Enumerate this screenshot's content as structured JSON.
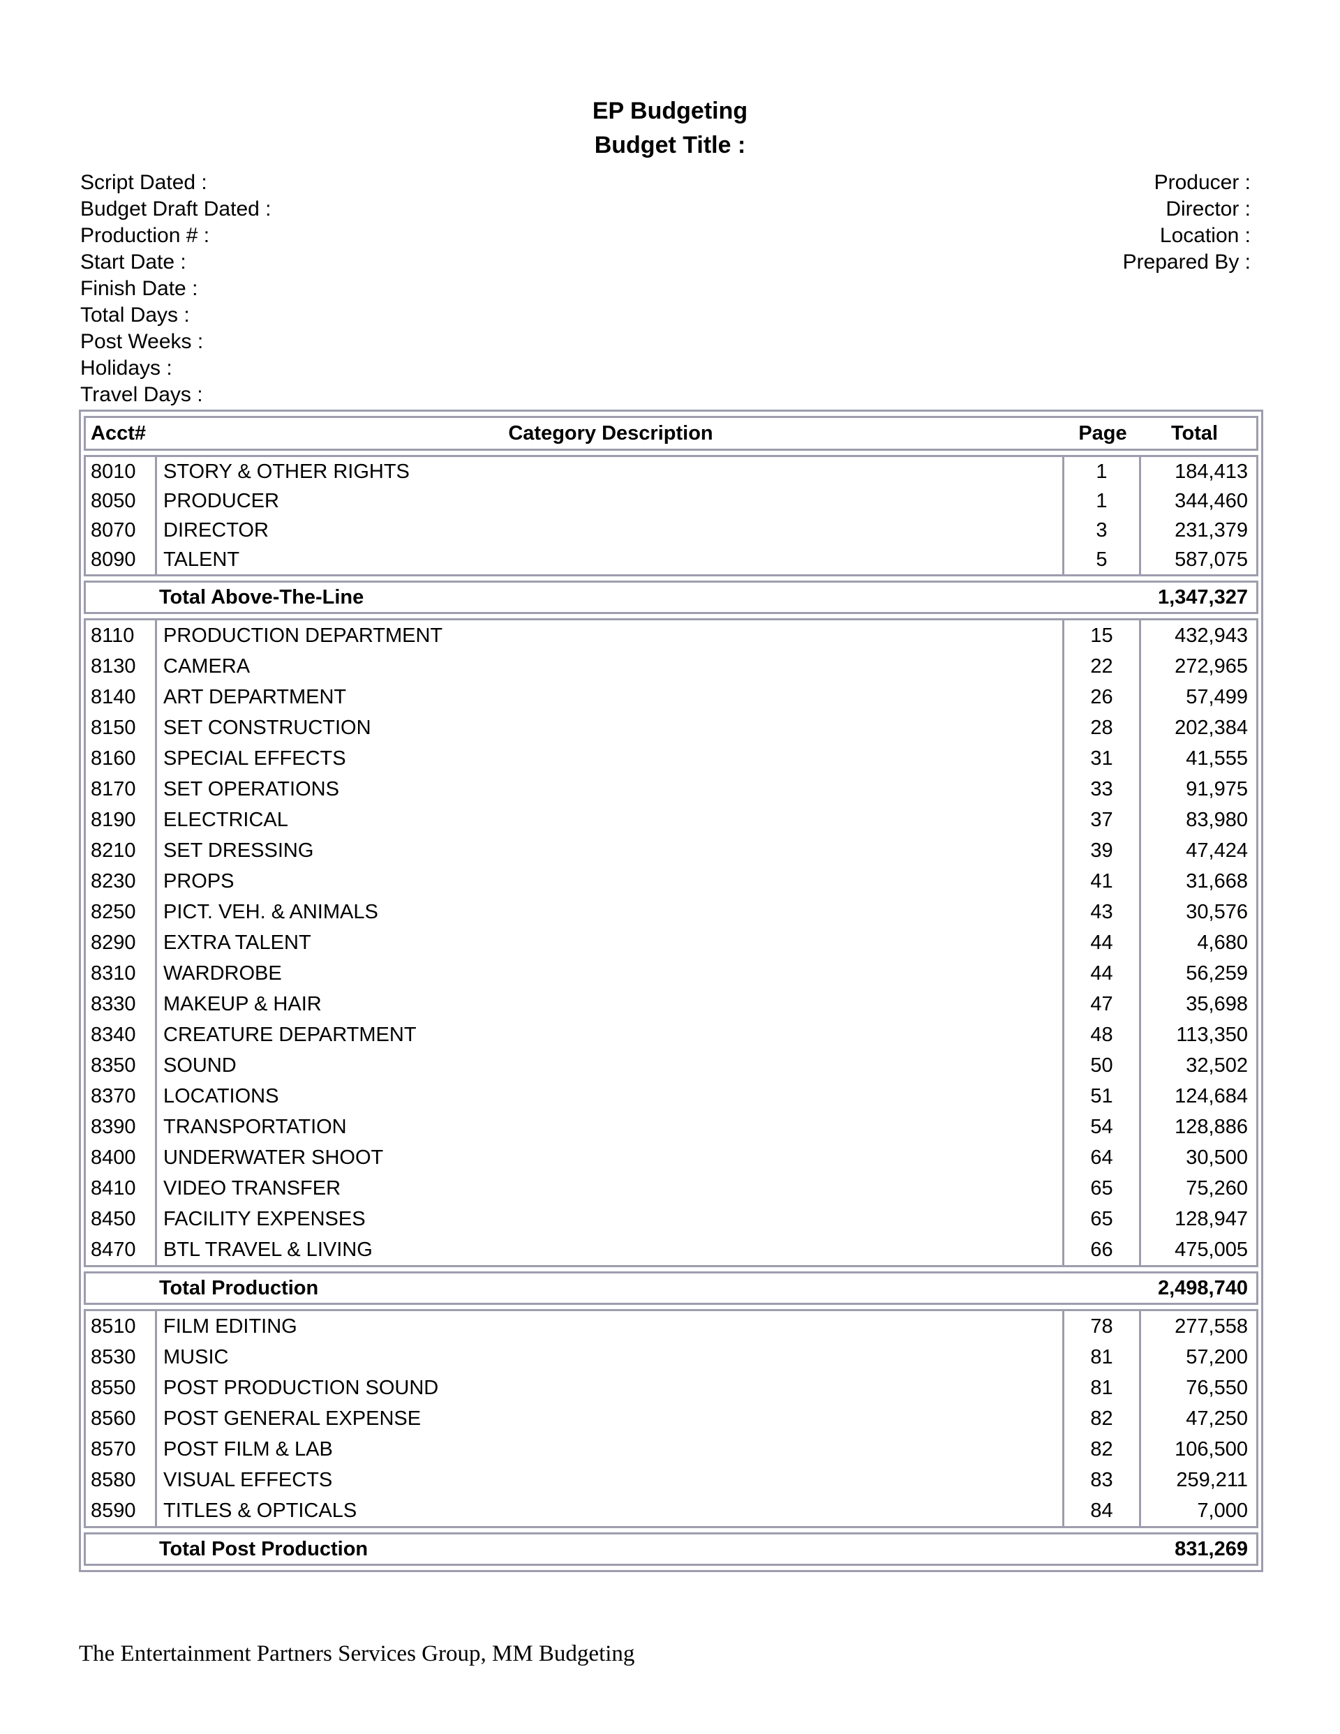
{
  "title": "EP Budgeting",
  "subtitle": "Budget Title :",
  "meta_left": [
    "Script Dated :",
    "Budget Draft Dated :",
    "Production # :",
    "Start Date :",
    "Finish Date :",
    "Total Days :",
    "Post Weeks :",
    "Holidays :",
    "Travel Days :"
  ],
  "meta_right": [
    "Producer :",
    "Director :",
    "Location :",
    "Prepared By :"
  ],
  "table": {
    "columns": [
      "Acct#",
      "Category Description",
      "Page",
      "Total"
    ],
    "sections": [
      {
        "name": "Above-The-Line",
        "rows": [
          [
            "8010",
            "STORY & OTHER RIGHTS",
            "1",
            "184,413"
          ],
          [
            "8050",
            "PRODUCER",
            "1",
            "344,460"
          ],
          [
            "8070",
            "DIRECTOR",
            "3",
            "231,379"
          ],
          [
            "8090",
            "TALENT",
            "5",
            "587,075"
          ]
        ],
        "total_label": "Total Above-The-Line",
        "total_value": "1,347,327"
      },
      {
        "name": "Production",
        "rows": [
          [
            "8110",
            "PRODUCTION DEPARTMENT",
            "15",
            "432,943"
          ],
          [
            "8130",
            "CAMERA",
            "22",
            "272,965"
          ],
          [
            "8140",
            "ART DEPARTMENT",
            "26",
            "57,499"
          ],
          [
            "8150",
            "SET CONSTRUCTION",
            "28",
            "202,384"
          ],
          [
            "8160",
            "SPECIAL EFFECTS",
            "31",
            "41,555"
          ],
          [
            "8170",
            "SET OPERATIONS",
            "33",
            "91,975"
          ],
          [
            "8190",
            "ELECTRICAL",
            "37",
            "83,980"
          ],
          [
            "8210",
            "SET DRESSING",
            "39",
            "47,424"
          ],
          [
            "8230",
            "PROPS",
            "41",
            "31,668"
          ],
          [
            "8250",
            "PICT. VEH. & ANIMALS",
            "43",
            "30,576"
          ],
          [
            "8290",
            "EXTRA TALENT",
            "44",
            "4,680"
          ],
          [
            "8310",
            "WARDROBE",
            "44",
            "56,259"
          ],
          [
            "8330",
            "MAKEUP & HAIR",
            "47",
            "35,698"
          ],
          [
            "8340",
            "CREATURE DEPARTMENT",
            "48",
            "113,350"
          ],
          [
            "8350",
            "SOUND",
            "50",
            "32,502"
          ],
          [
            "8370",
            "LOCATIONS",
            "51",
            "124,684"
          ],
          [
            "8390",
            "TRANSPORTATION",
            "54",
            "128,886"
          ],
          [
            "8400",
            "UNDERWATER SHOOT",
            "64",
            "30,500"
          ],
          [
            "8410",
            "VIDEO TRANSFER",
            "65",
            "75,260"
          ],
          [
            "8450",
            "FACILITY EXPENSES",
            "65",
            "128,947"
          ],
          [
            "8470",
            "BTL TRAVEL & LIVING",
            "66",
            "475,005"
          ]
        ],
        "total_label": "Total Production",
        "total_value": "2,498,740"
      },
      {
        "name": "Post Production",
        "rows": [
          [
            "8510",
            "FILM EDITING",
            "78",
            "277,558"
          ],
          [
            "8530",
            "MUSIC",
            "81",
            "57,200"
          ],
          [
            "8550",
            "POST PRODUCTION SOUND",
            "81",
            "76,550"
          ],
          [
            "8560",
            "POST GENERAL EXPENSE",
            "82",
            "47,250"
          ],
          [
            "8570",
            "POST FILM & LAB",
            "82",
            "106,500"
          ],
          [
            "8580",
            "VISUAL EFFECTS",
            "83",
            "259,211"
          ],
          [
            "8590",
            "TITLES & OPTICALS",
            "84",
            "7,000"
          ]
        ],
        "total_label": "Total Post Production",
        "total_value": "831,269"
      }
    ]
  },
  "footer": "The Entertainment Partners Services Group, MM Budgeting",
  "colors": {
    "border": "#9d9dae",
    "text": "#000000",
    "background": "#ffffff"
  }
}
